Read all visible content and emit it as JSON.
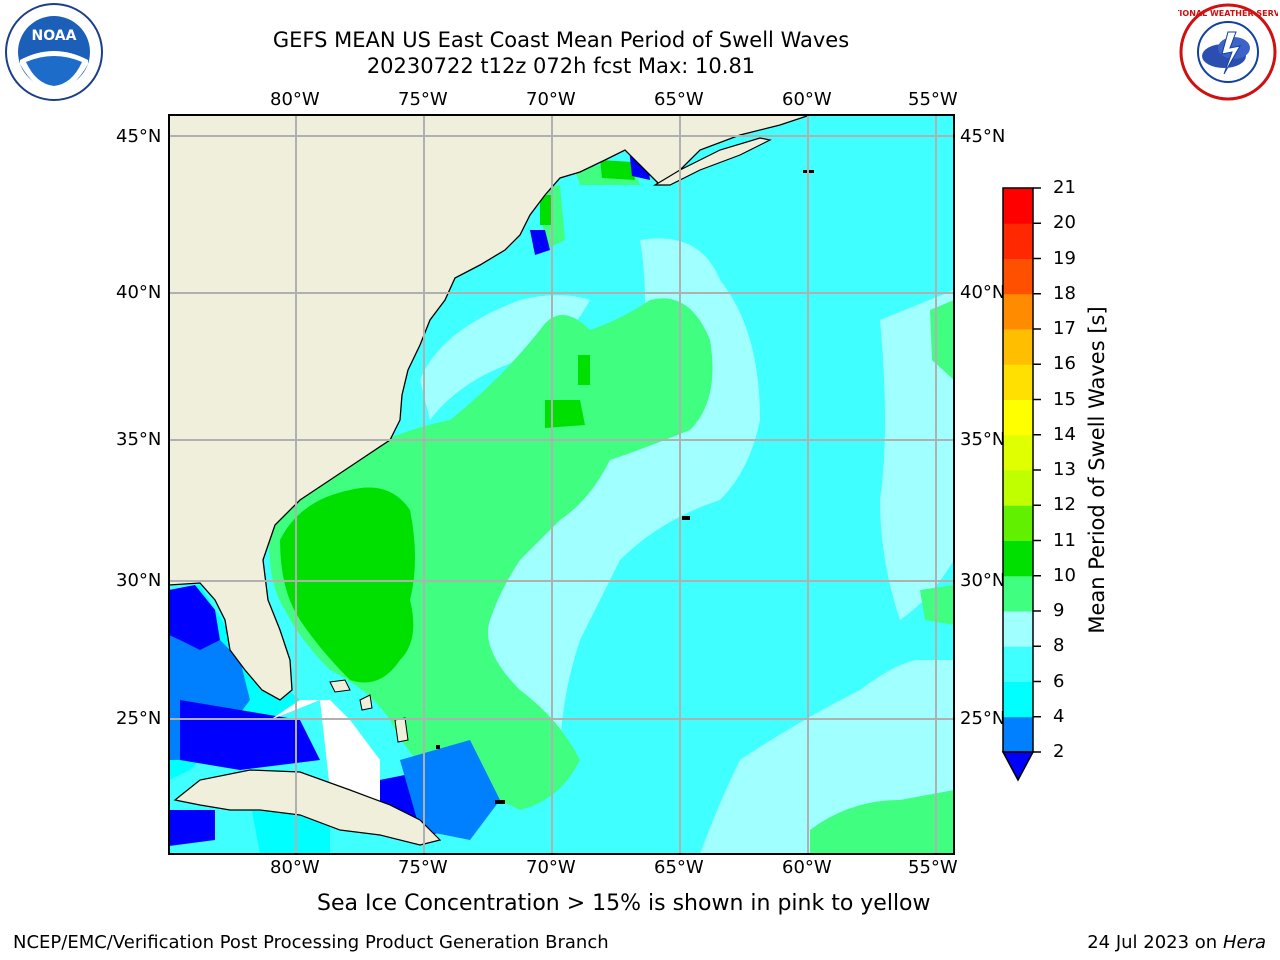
{
  "title": {
    "line1": "GEFS MEAN US East Coast Mean Period of Swell Waves",
    "line2": "20230722 t12z 072h fcst   Max: 10.81"
  },
  "logos": {
    "left": "noaa-logo",
    "right": "national-weather-service-logo",
    "left_text": "NOAA",
    "right_text": "NATIONAL WEATHER SERVICE"
  },
  "map": {
    "lon_labels": [
      "80°W",
      "75°W",
      "70°W",
      "65°W",
      "60°W",
      "55°W"
    ],
    "lat_labels": [
      "45°N",
      "40°N",
      "35°N",
      "30°N",
      "25°N"
    ],
    "land_color": "#efefdc",
    "grid_color": "#b0b0b0"
  },
  "colorbar": {
    "label": "Mean Period of Swell Waves [s]",
    "ticks": [
      "2",
      "4",
      "6",
      "8",
      "9",
      "10",
      "11",
      "12",
      "13",
      "14",
      "15",
      "16",
      "17",
      "18",
      "19",
      "20",
      "21"
    ],
    "under_color": "#0000ff",
    "colors": [
      "#0080ff",
      "#00ffff",
      "#40ffff",
      "#a0ffff",
      "#40ff80",
      "#00e000",
      "#60f000",
      "#c0ff00",
      "#e0ff00",
      "#ffff00",
      "#ffe000",
      "#ffbf00",
      "#ff8c00",
      "#ff5000",
      "#ff2800",
      "#ff0000"
    ]
  },
  "note": "Sea Ice Concentration > 15% is shown in pink to yellow",
  "footer": {
    "left": "NCEP/EMC/Verification Post Processing Product Generation Branch",
    "right_date": "24 Jul 2023 on ",
    "right_host": "Hera"
  }
}
